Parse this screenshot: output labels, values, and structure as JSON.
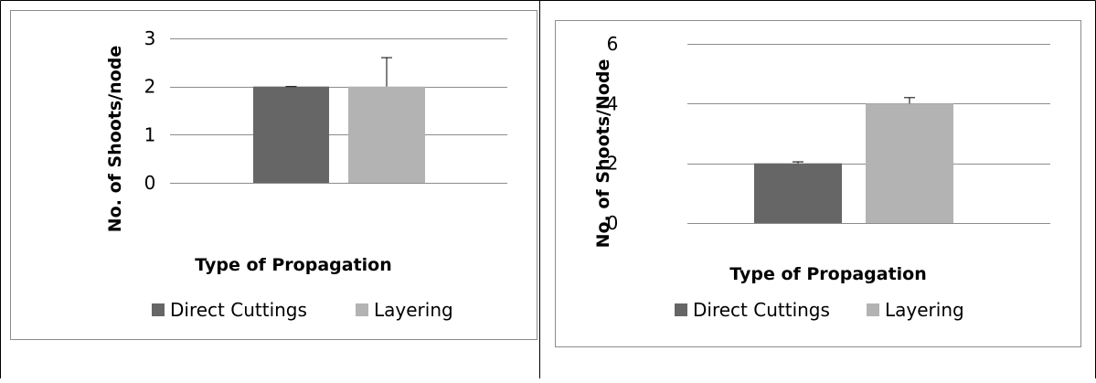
{
  "chart_data": [
    {
      "type": "bar",
      "categories": [
        ""
      ],
      "series": [
        {
          "name": "Direct Cuttings",
          "values": [
            2.0
          ],
          "error": [
            0.0
          ],
          "color": "#666666"
        },
        {
          "name": "Layering",
          "values": [
            2.0
          ],
          "error": [
            0.6
          ],
          "color": "#b3b3b3"
        }
      ],
      "xlabel": "Type of Propagation",
      "ylabel": "No. of Shoots/node",
      "ylim": [
        0,
        3
      ],
      "yticks": [
        0,
        1,
        2,
        3
      ],
      "grid": true,
      "legend": "bottom"
    },
    {
      "type": "bar",
      "categories": [
        ""
      ],
      "series": [
        {
          "name": "Direct Cuttings",
          "values": [
            2.0
          ],
          "error": [
            0.05
          ],
          "color": "#666666"
        },
        {
          "name": "Layering",
          "values": [
            4.0
          ],
          "error": [
            0.2
          ],
          "color": "#b3b3b3"
        }
      ],
      "xlabel": "Type of Propagation",
      "ylabel": "No. of Shoots/Node",
      "ylim": [
        0,
        6
      ],
      "yticks": [
        0,
        2,
        4,
        6
      ],
      "grid": true,
      "legend": "bottom"
    }
  ]
}
